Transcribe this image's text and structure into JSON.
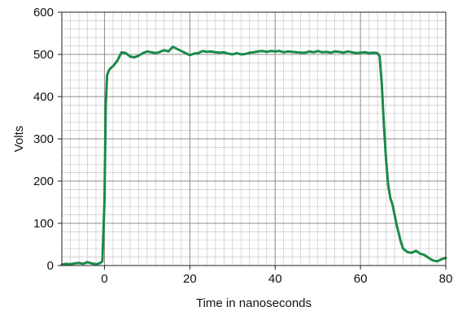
{
  "chart_data": {
    "type": "line",
    "title": "",
    "xlabel": "Time in nanoseconds",
    "ylabel": "Volts",
    "xlim": [
      -10,
      80
    ],
    "ylim": [
      0,
      600
    ],
    "xticks": [
      0,
      20,
      40,
      60,
      80
    ],
    "yticks": [
      0,
      100,
      200,
      300,
      400,
      500,
      600
    ],
    "grid": true,
    "minor_grid": true,
    "legend": "none",
    "colors": {
      "line": "#1a8a4a",
      "grid": "#bbbbbb",
      "axis": "#222222"
    },
    "series": [
      {
        "x": [
          -10,
          -9,
          -8,
          -7,
          -6,
          -5,
          -4,
          -3,
          -2,
          -1,
          -0.5,
          0,
          0.3,
          0.6,
          1,
          1.5,
          2,
          3,
          4,
          5,
          6,
          7,
          8,
          9,
          10,
          11,
          12,
          13,
          14,
          15,
          16,
          17,
          18,
          19,
          20,
          21,
          22,
          23,
          24,
          25,
          26,
          27,
          28,
          29,
          30,
          31,
          32,
          33,
          34,
          35,
          36,
          37,
          38,
          39,
          40,
          41,
          42,
          43,
          44,
          45,
          46,
          47,
          48,
          49,
          50,
          51,
          52,
          53,
          54,
          55,
          56,
          57,
          58,
          59,
          60,
          61,
          62,
          63,
          64,
          64.5,
          65,
          65.5,
          66,
          66.5,
          67,
          67.5,
          68,
          68.5,
          69,
          69.5,
          70,
          71,
          72,
          73,
          74,
          75,
          76,
          77,
          78,
          79,
          80
        ],
        "y": [
          2,
          4,
          3,
          5,
          6,
          4,
          8,
          5,
          3,
          6,
          10,
          150,
          380,
          450,
          462,
          468,
          472,
          485,
          505,
          503,
          495,
          493,
          497,
          503,
          507,
          505,
          503,
          506,
          510,
          507,
          518,
          513,
          508,
          503,
          498,
          502,
          503,
          508,
          506,
          507,
          505,
          504,
          505,
          502,
          500,
          503,
          500,
          501,
          504,
          505,
          507,
          508,
          506,
          508,
          507,
          508,
          505,
          507,
          506,
          505,
          504,
          504,
          507,
          505,
          508,
          505,
          506,
          504,
          507,
          506,
          504,
          507,
          505,
          503,
          504,
          505,
          503,
          504,
          503,
          495,
          430,
          330,
          250,
          190,
          160,
          145,
          120,
          95,
          75,
          55,
          40,
          32,
          30,
          35,
          28,
          25,
          18,
          12,
          10,
          15,
          18
        ]
      }
    ]
  }
}
